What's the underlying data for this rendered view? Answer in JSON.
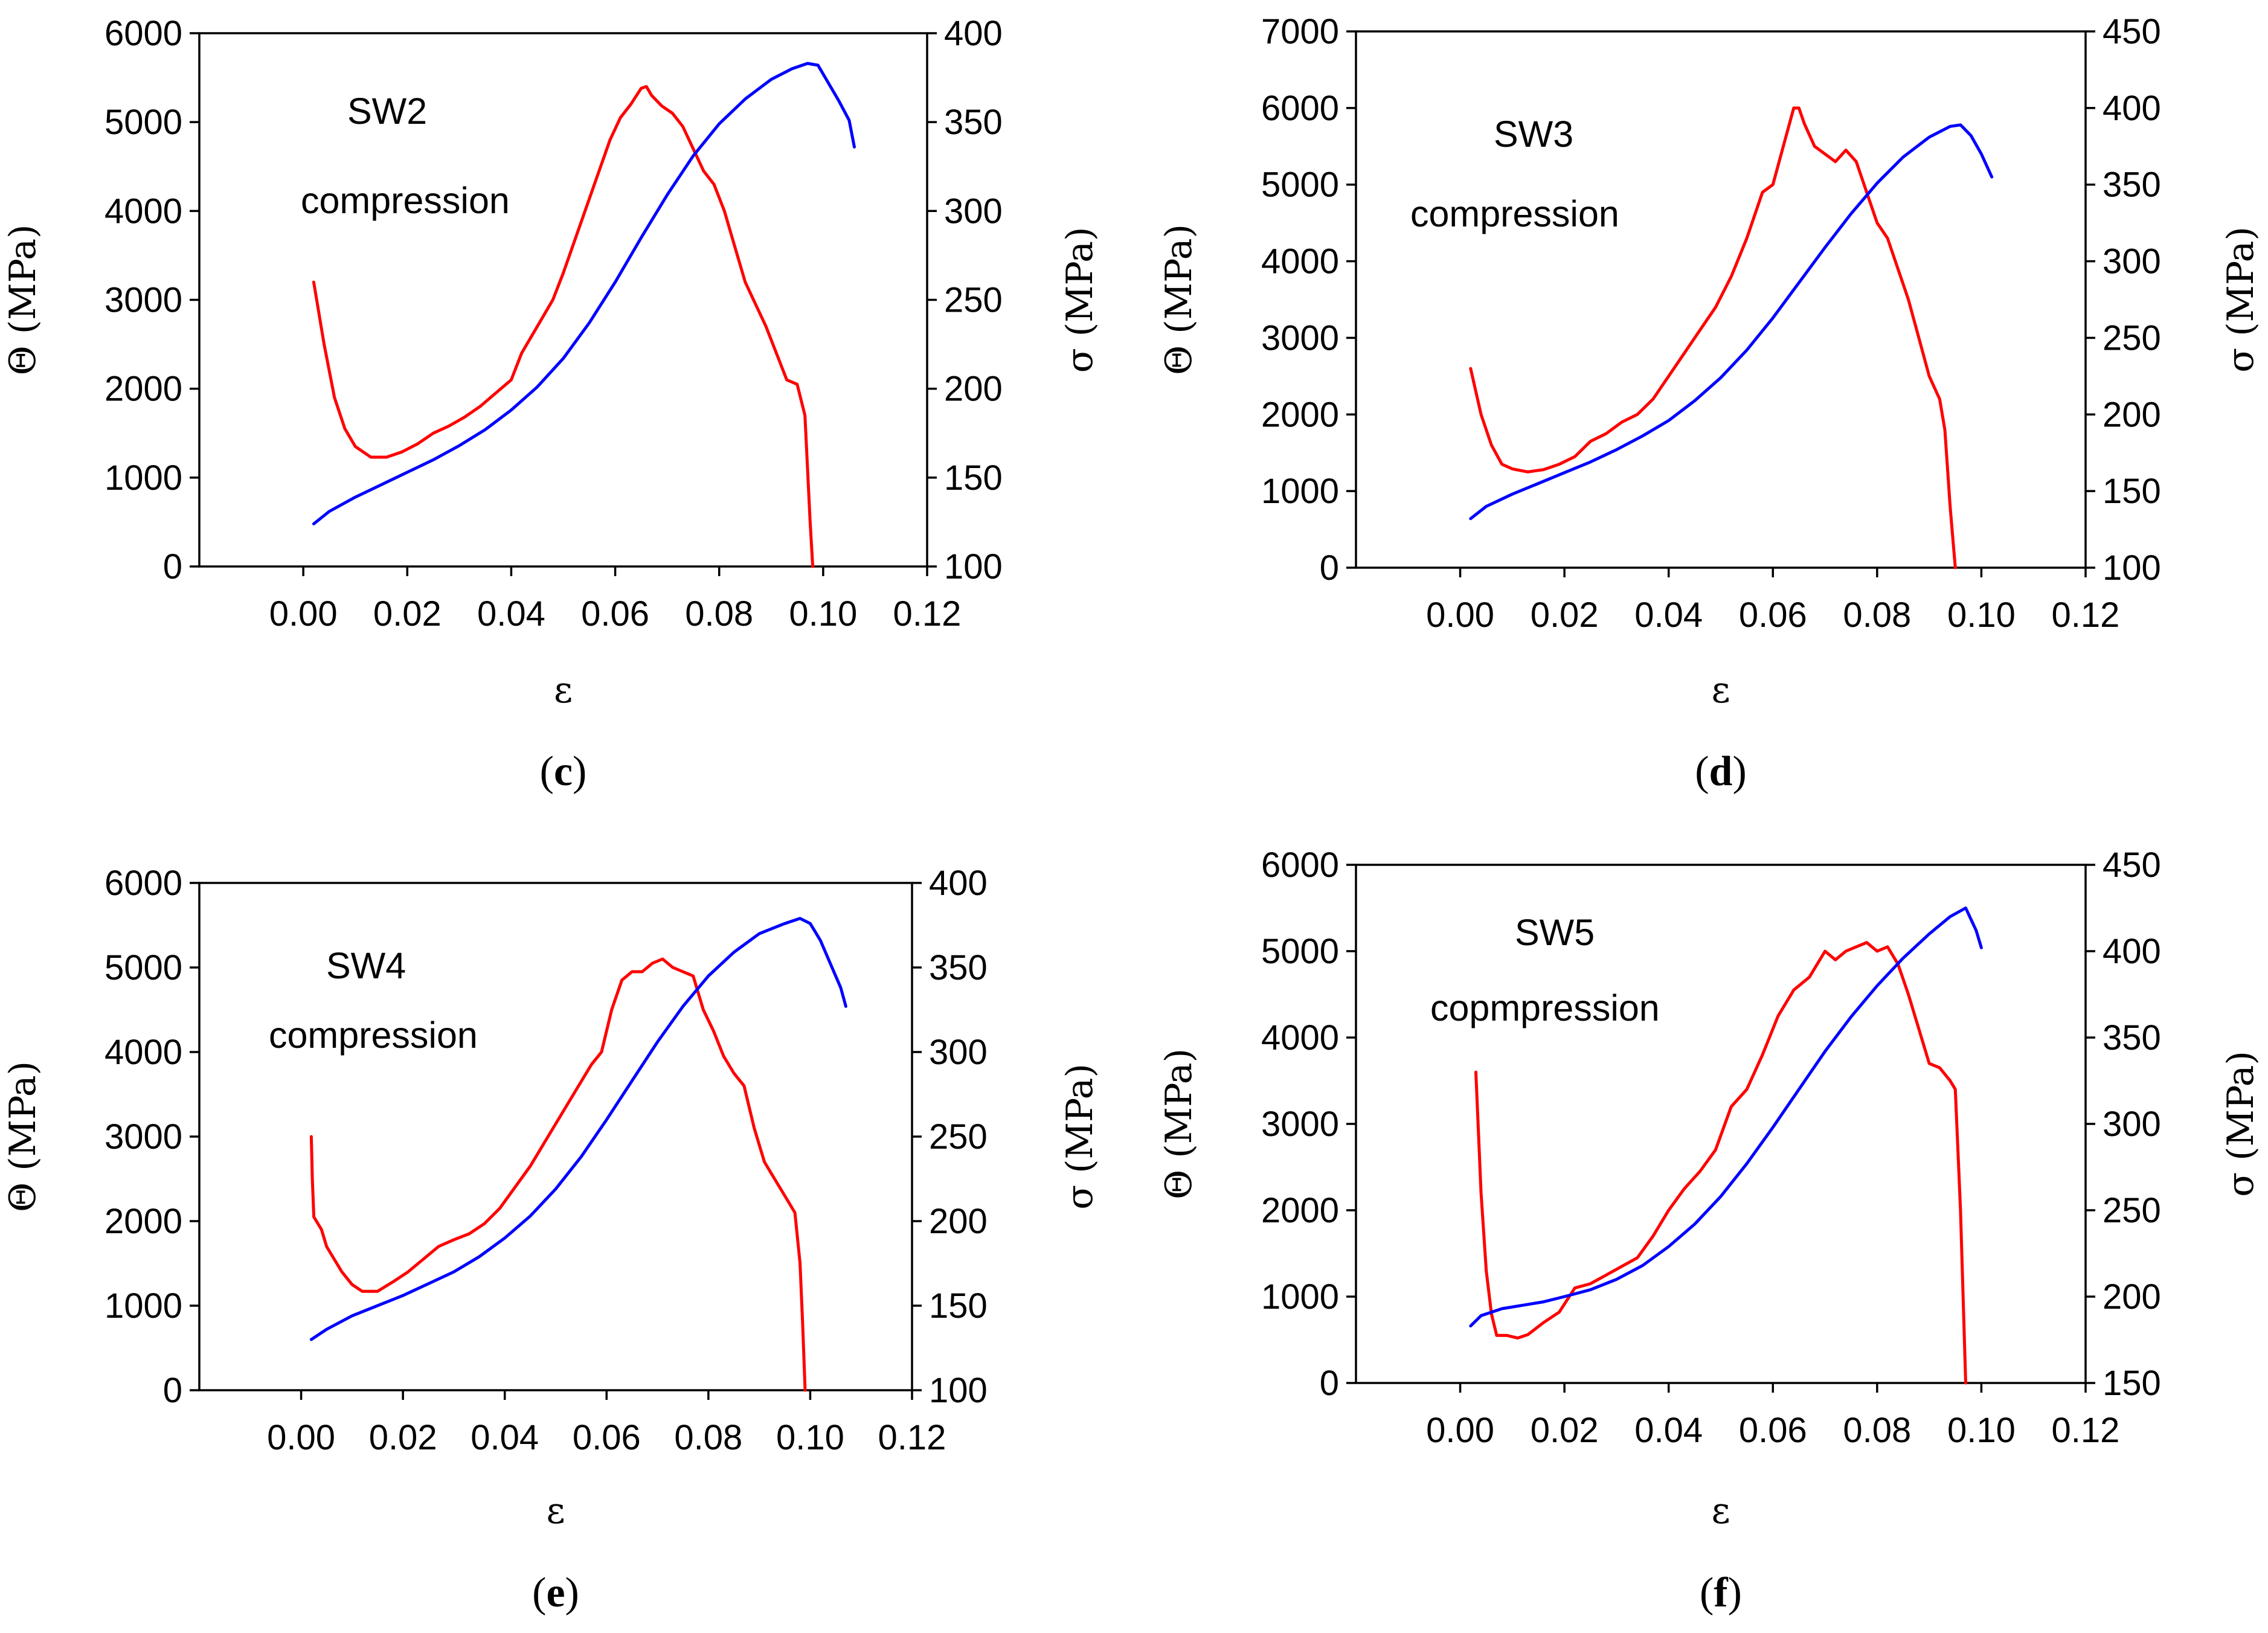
{
  "chart_data": [
    {
      "type": "line",
      "panel_label": "c",
      "annotations": [
        "SW2",
        "compression"
      ],
      "xlabel": "ε",
      "ylabel": "Θ (MPa)",
      "y2label": "σ (MPa)",
      "xlim": [
        -0.02,
        0.12
      ],
      "xticks": [
        0.0,
        0.02,
        0.04,
        0.06,
        0.08,
        0.1,
        0.12
      ],
      "xtick_labels": [
        "0.00",
        "0.02",
        "0.04",
        "0.06",
        "0.08",
        "0.10",
        "0.12"
      ],
      "ylim": [
        0,
        6000
      ],
      "yticks": [
        0,
        1000,
        2000,
        3000,
        4000,
        5000,
        6000
      ],
      "y2lim": [
        100,
        400
      ],
      "y2ticks": [
        100,
        150,
        200,
        250,
        300,
        350,
        400
      ],
      "series": [
        {
          "color": "#ff0000",
          "axis": "left",
          "x": [
            0.002,
            0.004,
            0.006,
            0.008,
            0.01,
            0.013,
            0.016,
            0.019,
            0.022,
            0.025,
            0.028,
            0.031,
            0.034,
            0.037,
            0.04,
            0.042,
            0.045,
            0.048,
            0.05,
            0.053,
            0.056,
            0.059,
            0.061,
            0.063,
            0.065,
            0.066,
            0.067,
            0.069,
            0.071,
            0.073,
            0.075,
            0.077,
            0.079,
            0.081,
            0.083,
            0.085,
            0.087,
            0.089,
            0.091,
            0.093,
            0.095,
            0.0965,
            0.0975,
            0.098
          ],
          "y": [
            3200,
            2500,
            1900,
            1550,
            1350,
            1230,
            1230,
            1290,
            1380,
            1500,
            1580,
            1680,
            1800,
            1950,
            2100,
            2400,
            2700,
            3000,
            3300,
            3800,
            4300,
            4800,
            5050,
            5200,
            5380,
            5400,
            5300,
            5180,
            5100,
            4950,
            4700,
            4450,
            4300,
            4000,
            3600,
            3200,
            2950,
            2700,
            2400,
            2100,
            2050,
            1700,
            500,
            0
          ]
        },
        {
          "color": "#0000ff",
          "axis": "right",
          "x": [
            0.002,
            0.005,
            0.01,
            0.015,
            0.02,
            0.025,
            0.03,
            0.035,
            0.04,
            0.045,
            0.05,
            0.055,
            0.06,
            0.065,
            0.07,
            0.075,
            0.08,
            0.085,
            0.09,
            0.094,
            0.097,
            0.099,
            0.101,
            0.103,
            0.105,
            0.106
          ],
          "y": [
            124,
            131,
            139,
            146,
            153,
            160,
            168,
            177,
            188,
            201,
            217,
            237,
            260,
            285,
            309,
            331,
            349,
            363,
            374,
            380,
            383,
            382,
            372,
            362,
            351,
            336
          ]
        }
      ]
    },
    {
      "type": "line",
      "panel_label": "d",
      "annotations": [
        "SW3",
        "compression"
      ],
      "xlabel": "ε",
      "ylabel": "Θ (MPa)",
      "y2label": "σ (MPa)",
      "xlim": [
        -0.02,
        0.12
      ],
      "xticks": [
        0.0,
        0.02,
        0.04,
        0.06,
        0.08,
        0.1,
        0.12
      ],
      "xtick_labels": [
        "0.00",
        "0.02",
        "0.04",
        "0.06",
        "0.08",
        "0.10",
        "0.12"
      ],
      "ylim": [
        0,
        7000
      ],
      "yticks": [
        0,
        1000,
        2000,
        3000,
        4000,
        5000,
        6000,
        7000
      ],
      "y2lim": [
        100,
        450
      ],
      "y2ticks": [
        100,
        150,
        200,
        250,
        300,
        350,
        400,
        450
      ],
      "series": [
        {
          "color": "#ff0000",
          "axis": "left",
          "x": [
            0.002,
            0.004,
            0.006,
            0.008,
            0.01,
            0.013,
            0.016,
            0.019,
            0.022,
            0.025,
            0.028,
            0.031,
            0.034,
            0.037,
            0.04,
            0.043,
            0.046,
            0.049,
            0.052,
            0.055,
            0.058,
            0.06,
            0.062,
            0.064,
            0.065,
            0.066,
            0.068,
            0.07,
            0.072,
            0.074,
            0.076,
            0.078,
            0.08,
            0.082,
            0.084,
            0.086,
            0.088,
            0.09,
            0.092,
            0.093,
            0.094,
            0.095
          ],
          "y": [
            2600,
            2000,
            1600,
            1350,
            1290,
            1250,
            1280,
            1350,
            1450,
            1650,
            1750,
            1900,
            2000,
            2200,
            2500,
            2800,
            3100,
            3400,
            3800,
            4300,
            4900,
            5000,
            5500,
            6000,
            6000,
            5800,
            5500,
            5400,
            5300,
            5450,
            5300,
            4900,
            4500,
            4300,
            3900,
            3500,
            3000,
            2500,
            2200,
            1800,
            800,
            0
          ]
        },
        {
          "color": "#0000ff",
          "axis": "right",
          "x": [
            0.002,
            0.005,
            0.01,
            0.015,
            0.02,
            0.025,
            0.03,
            0.035,
            0.04,
            0.045,
            0.05,
            0.055,
            0.06,
            0.065,
            0.07,
            0.075,
            0.08,
            0.085,
            0.09,
            0.094,
            0.096,
            0.098,
            0.1,
            0.102
          ],
          "y": [
            132,
            140,
            148,
            155,
            162,
            169,
            177,
            186,
            196,
            209,
            224,
            242,
            263,
            286,
            309,
            331,
            351,
            368,
            381,
            388,
            389,
            382,
            370,
            355
          ]
        }
      ]
    },
    {
      "type": "line",
      "panel_label": "e",
      "annotations": [
        "SW4",
        "compression"
      ],
      "xlabel": "ε",
      "ylabel": "Θ (MPa)",
      "y2label": "σ (MPa)",
      "xlim": [
        -0.02,
        0.12
      ],
      "xticks": [
        0.0,
        0.02,
        0.04,
        0.06,
        0.08,
        0.1,
        0.12
      ],
      "xtick_labels": [
        "0.00",
        "0.02",
        "0.04",
        "0.06",
        "0.08",
        "0.10",
        "0.12"
      ],
      "ylim": [
        0,
        6000
      ],
      "yticks": [
        0,
        1000,
        2000,
        3000,
        4000,
        5000,
        6000
      ],
      "y2lim": [
        100,
        400
      ],
      "y2ticks": [
        100,
        150,
        200,
        250,
        300,
        350,
        400
      ],
      "series": [
        {
          "color": "#ff0000",
          "axis": "left",
          "x": [
            0.002,
            0.0022,
            0.0025,
            0.004,
            0.005,
            0.006,
            0.008,
            0.01,
            0.012,
            0.015,
            0.018,
            0.021,
            0.024,
            0.027,
            0.03,
            0.033,
            0.036,
            0.039,
            0.042,
            0.045,
            0.048,
            0.051,
            0.054,
            0.057,
            0.059,
            0.061,
            0.063,
            0.065,
            0.067,
            0.069,
            0.071,
            0.073,
            0.075,
            0.077,
            0.079,
            0.081,
            0.083,
            0.085,
            0.087,
            0.089,
            0.091,
            0.093,
            0.095,
            0.097,
            0.098,
            0.0985,
            0.099
          ],
          "y": [
            3000,
            2500,
            2050,
            1900,
            1700,
            1600,
            1400,
            1250,
            1170,
            1170,
            1280,
            1400,
            1550,
            1700,
            1780,
            1850,
            1970,
            2150,
            2400,
            2650,
            2950,
            3250,
            3550,
            3850,
            4000,
            4500,
            4850,
            4950,
            4950,
            5050,
            5100,
            5000,
            4950,
            4900,
            4500,
            4250,
            3950,
            3750,
            3600,
            3100,
            2700,
            2500,
            2300,
            2100,
            1500,
            800,
            0
          ]
        },
        {
          "color": "#0000ff",
          "axis": "right",
          "x": [
            0.002,
            0.005,
            0.01,
            0.015,
            0.02,
            0.025,
            0.03,
            0.035,
            0.04,
            0.045,
            0.05,
            0.055,
            0.06,
            0.065,
            0.07,
            0.075,
            0.08,
            0.085,
            0.09,
            0.095,
            0.098,
            0.1,
            0.102,
            0.104,
            0.106,
            0.107
          ],
          "y": [
            130,
            136,
            144,
            150,
            156,
            163,
            170,
            179,
            190,
            203,
            219,
            238,
            260,
            283,
            306,
            327,
            345,
            359,
            370,
            376,
            379,
            376,
            366,
            352,
            338,
            327
          ]
        }
      ]
    },
    {
      "type": "line",
      "panel_label": "f",
      "annotations": [
        "SW5",
        "copmpression"
      ],
      "xlabel": "ε",
      "ylabel": "Θ (MPa)",
      "y2label": "σ (MPa)",
      "xlim": [
        -0.02,
        0.12
      ],
      "xticks": [
        0.0,
        0.02,
        0.04,
        0.06,
        0.08,
        0.1,
        0.12
      ],
      "xtick_labels": [
        "0.00",
        "0.02",
        "0.04",
        "0.06",
        "0.08",
        "0.10",
        "0.12"
      ],
      "ylim": [
        0,
        6000
      ],
      "yticks": [
        0,
        1000,
        2000,
        3000,
        4000,
        5000,
        6000
      ],
      "y2lim": [
        150,
        450
      ],
      "y2ticks": [
        150,
        200,
        250,
        300,
        350,
        400,
        450
      ],
      "series": [
        {
          "color": "#ff0000",
          "axis": "left",
          "x": [
            0.003,
            0.004,
            0.005,
            0.006,
            0.007,
            0.009,
            0.011,
            0.013,
            0.016,
            0.019,
            0.022,
            0.025,
            0.028,
            0.031,
            0.034,
            0.037,
            0.04,
            0.043,
            0.046,
            0.049,
            0.052,
            0.055,
            0.058,
            0.061,
            0.064,
            0.067,
            0.07,
            0.072,
            0.074,
            0.076,
            0.078,
            0.08,
            0.082,
            0.084,
            0.086,
            0.088,
            0.09,
            0.092,
            0.094,
            0.095,
            0.096,
            0.097
          ],
          "y": [
            3600,
            2200,
            1300,
            800,
            550,
            550,
            520,
            560,
            700,
            820,
            1100,
            1150,
            1250,
            1350,
            1450,
            1700,
            2000,
            2250,
            2450,
            2700,
            3200,
            3400,
            3800,
            4250,
            4550,
            4700,
            5000,
            4900,
            5000,
            5050,
            5100,
            5000,
            5050,
            4850,
            4500,
            4100,
            3700,
            3650,
            3500,
            3400,
            2000,
            0
          ]
        },
        {
          "color": "#0000ff",
          "axis": "right",
          "x": [
            0.002,
            0.004,
            0.008,
            0.012,
            0.016,
            0.02,
            0.025,
            0.03,
            0.035,
            0.04,
            0.045,
            0.05,
            0.055,
            0.06,
            0.065,
            0.07,
            0.075,
            0.08,
            0.085,
            0.09,
            0.094,
            0.097,
            0.099,
            0.1
          ],
          "y": [
            183,
            189,
            193,
            195,
            197,
            200,
            204,
            210,
            218,
            229,
            242,
            258,
            277,
            298,
            320,
            342,
            362,
            380,
            396,
            410,
            420,
            425,
            412,
            402
          ]
        }
      ]
    }
  ]
}
